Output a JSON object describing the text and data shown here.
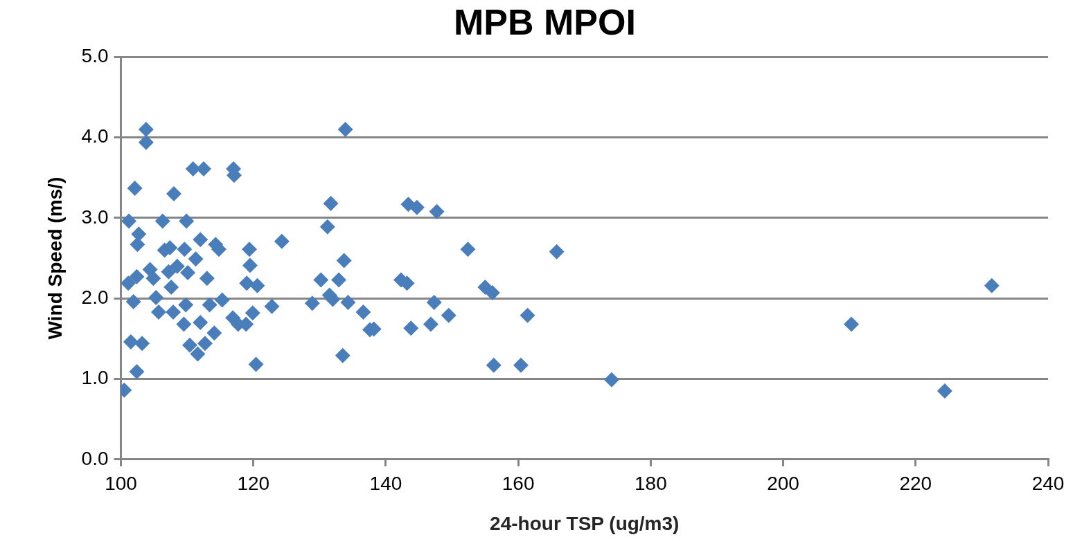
{
  "chart_data": {
    "type": "scatter",
    "title": "MPB MPOI",
    "xlabel": "24-hour TSP (ug/m3)",
    "ylabel": "Wind Speed (ms/)",
    "x": [
      100.5,
      101.2,
      101.1,
      101.5,
      102.1,
      102.4,
      101.9,
      102.5,
      102.7,
      102.4,
      103.2,
      103.8,
      103.8,
      104.4,
      104.9,
      105.3,
      105.7,
      106.3,
      106.6,
      107.2,
      107.4,
      107.6,
      108.0,
      107.9,
      108.5,
      109.6,
      109.8,
      109.9,
      110.1,
      109.5,
      110.4,
      110.9,
      111.3,
      111.6,
      112.0,
      112.0,
      112.5,
      112.7,
      113.0,
      113.4,
      114.1,
      114.3,
      114.8,
      115.3,
      116.9,
      117.0,
      117.1,
      117.7,
      118.9,
      119.0,
      119.4,
      119.5,
      119.9,
      120.4,
      120.6,
      122.8,
      124.3,
      128.9,
      130.2,
      131.2,
      131.7,
      131.5,
      132.0,
      132.9,
      133.5,
      133.7,
      133.9,
      134.3,
      136.6,
      137.6,
      138.2,
      142.3,
      143.2,
      143.4,
      143.8,
      144.7,
      147.3,
      147.7,
      146.8,
      149.5,
      152.4,
      155.0,
      156.1,
      156.3,
      160.4,
      161.4,
      165.8,
      174.1,
      210.3,
      224.4,
      231.5
    ],
    "series": [
      {
        "color": "#4a7ebb",
        "values": [
          0.86,
          2.96,
          2.19,
          1.46,
          3.37,
          1.09,
          1.96,
          2.67,
          2.8,
          2.27,
          1.44,
          4.1,
          3.94,
          2.36,
          2.25,
          2.01,
          1.83,
          2.96,
          2.6,
          2.33,
          2.63,
          2.14,
          3.3,
          1.83,
          2.4,
          2.61,
          1.92,
          2.96,
          2.32,
          1.68,
          1.42,
          3.61,
          2.49,
          1.31,
          1.7,
          2.73,
          3.61,
          1.44,
          2.25,
          1.92,
          1.57,
          2.67,
          2.61,
          1.98,
          1.76,
          3.61,
          3.53,
          1.68,
          1.68,
          2.19,
          2.61,
          2.41,
          1.82,
          1.18,
          2.16,
          1.9,
          2.71,
          1.94,
          2.23,
          2.89,
          3.18,
          2.04,
          1.99,
          2.23,
          1.29,
          2.47,
          4.1,
          1.95,
          1.83,
          1.61,
          1.62,
          2.23,
          2.19,
          3.17,
          1.63,
          3.13,
          1.95,
          3.08,
          1.68,
          1.79,
          2.61,
          2.14,
          2.07,
          1.17,
          1.17,
          1.79,
          2.58,
          0.99,
          1.68,
          0.85,
          2.16
        ]
      }
    ],
    "xlim": [
      100,
      240
    ],
    "xticks": [
      100,
      120,
      140,
      160,
      180,
      200,
      220,
      240
    ],
    "ylim": [
      0,
      5
    ],
    "yticks": [
      {
        "value": 0,
        "label": "0.0"
      },
      {
        "value": 1,
        "label": "1.0"
      },
      {
        "value": 2,
        "label": "2.0"
      },
      {
        "value": 3,
        "label": "3.0"
      },
      {
        "value": 4,
        "label": "4.0"
      },
      {
        "value": 5,
        "label": "5.0"
      }
    ],
    "grid": "y",
    "marker": "diamond",
    "legend": false
  }
}
